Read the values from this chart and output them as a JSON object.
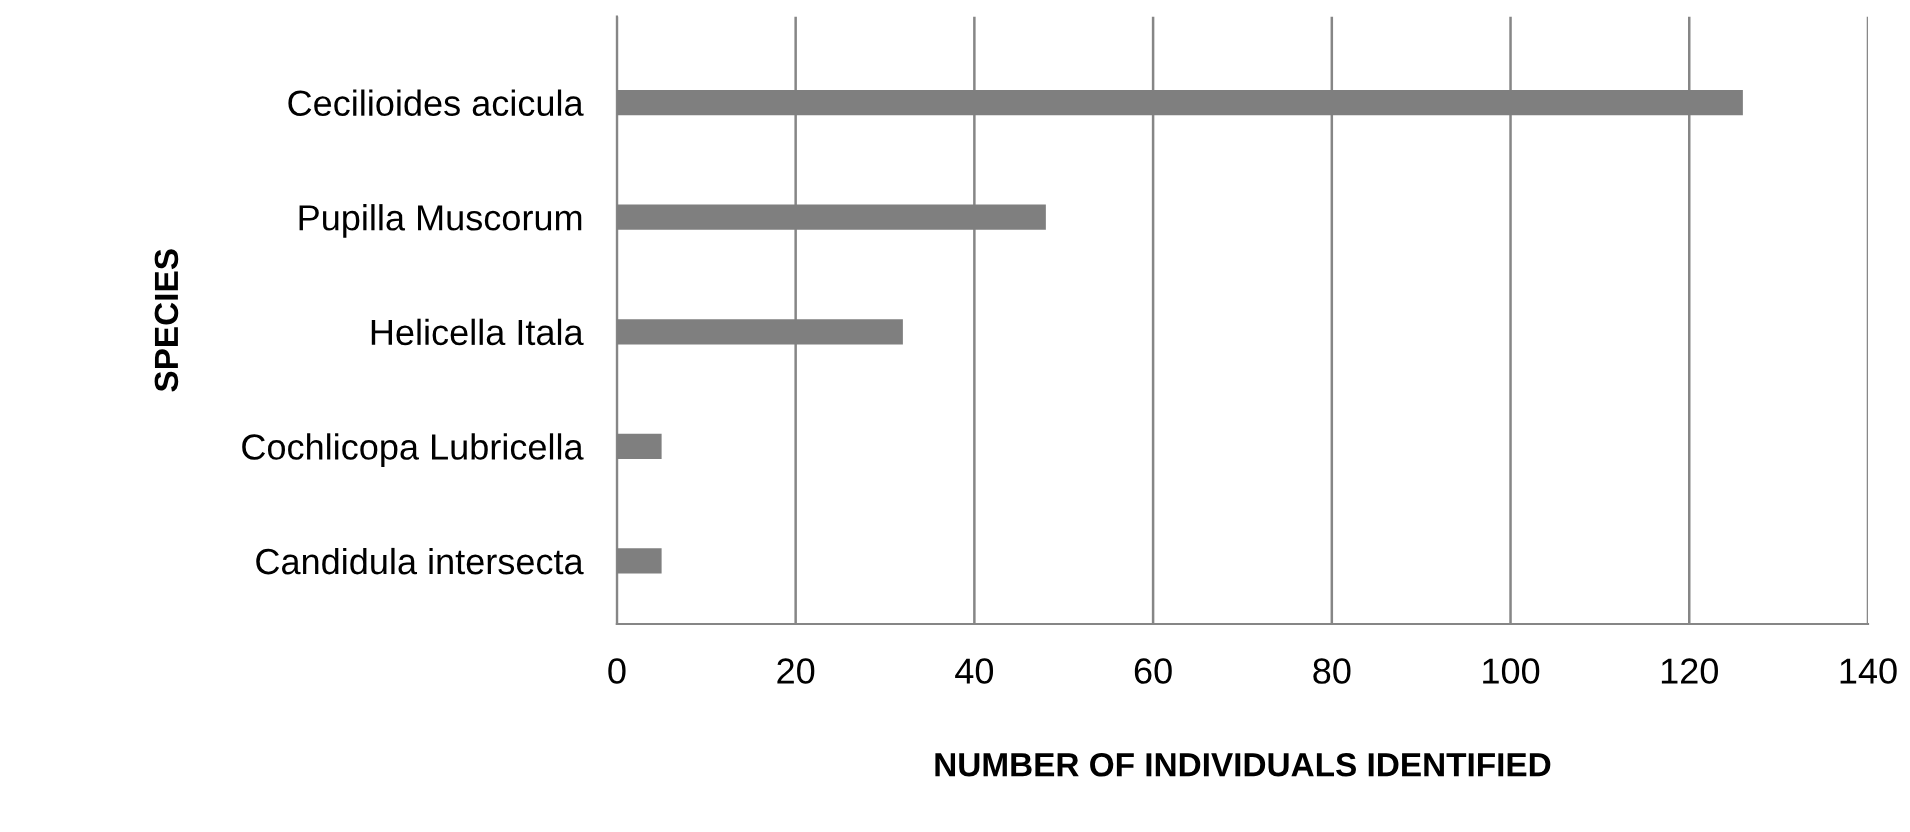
{
  "chart_data": {
    "type": "bar",
    "orientation": "horizontal",
    "categories": [
      "Cecilioides acicula",
      "Pupilla Muscorum",
      "Helicella Itala",
      "Cochlicopa Lubricella",
      "Candidula intersecta"
    ],
    "values": [
      126,
      48,
      32,
      5,
      5
    ],
    "color": "#7f7f7f",
    "xlabel": "NUMBER OF INDIVIDUALS IDENTIFIED",
    "ylabel": "SPECIES",
    "xlim": [
      0,
      140
    ],
    "xticks": [
      0,
      20,
      40,
      60,
      80,
      100,
      120,
      140
    ],
    "grid": "x",
    "legend": false
  }
}
